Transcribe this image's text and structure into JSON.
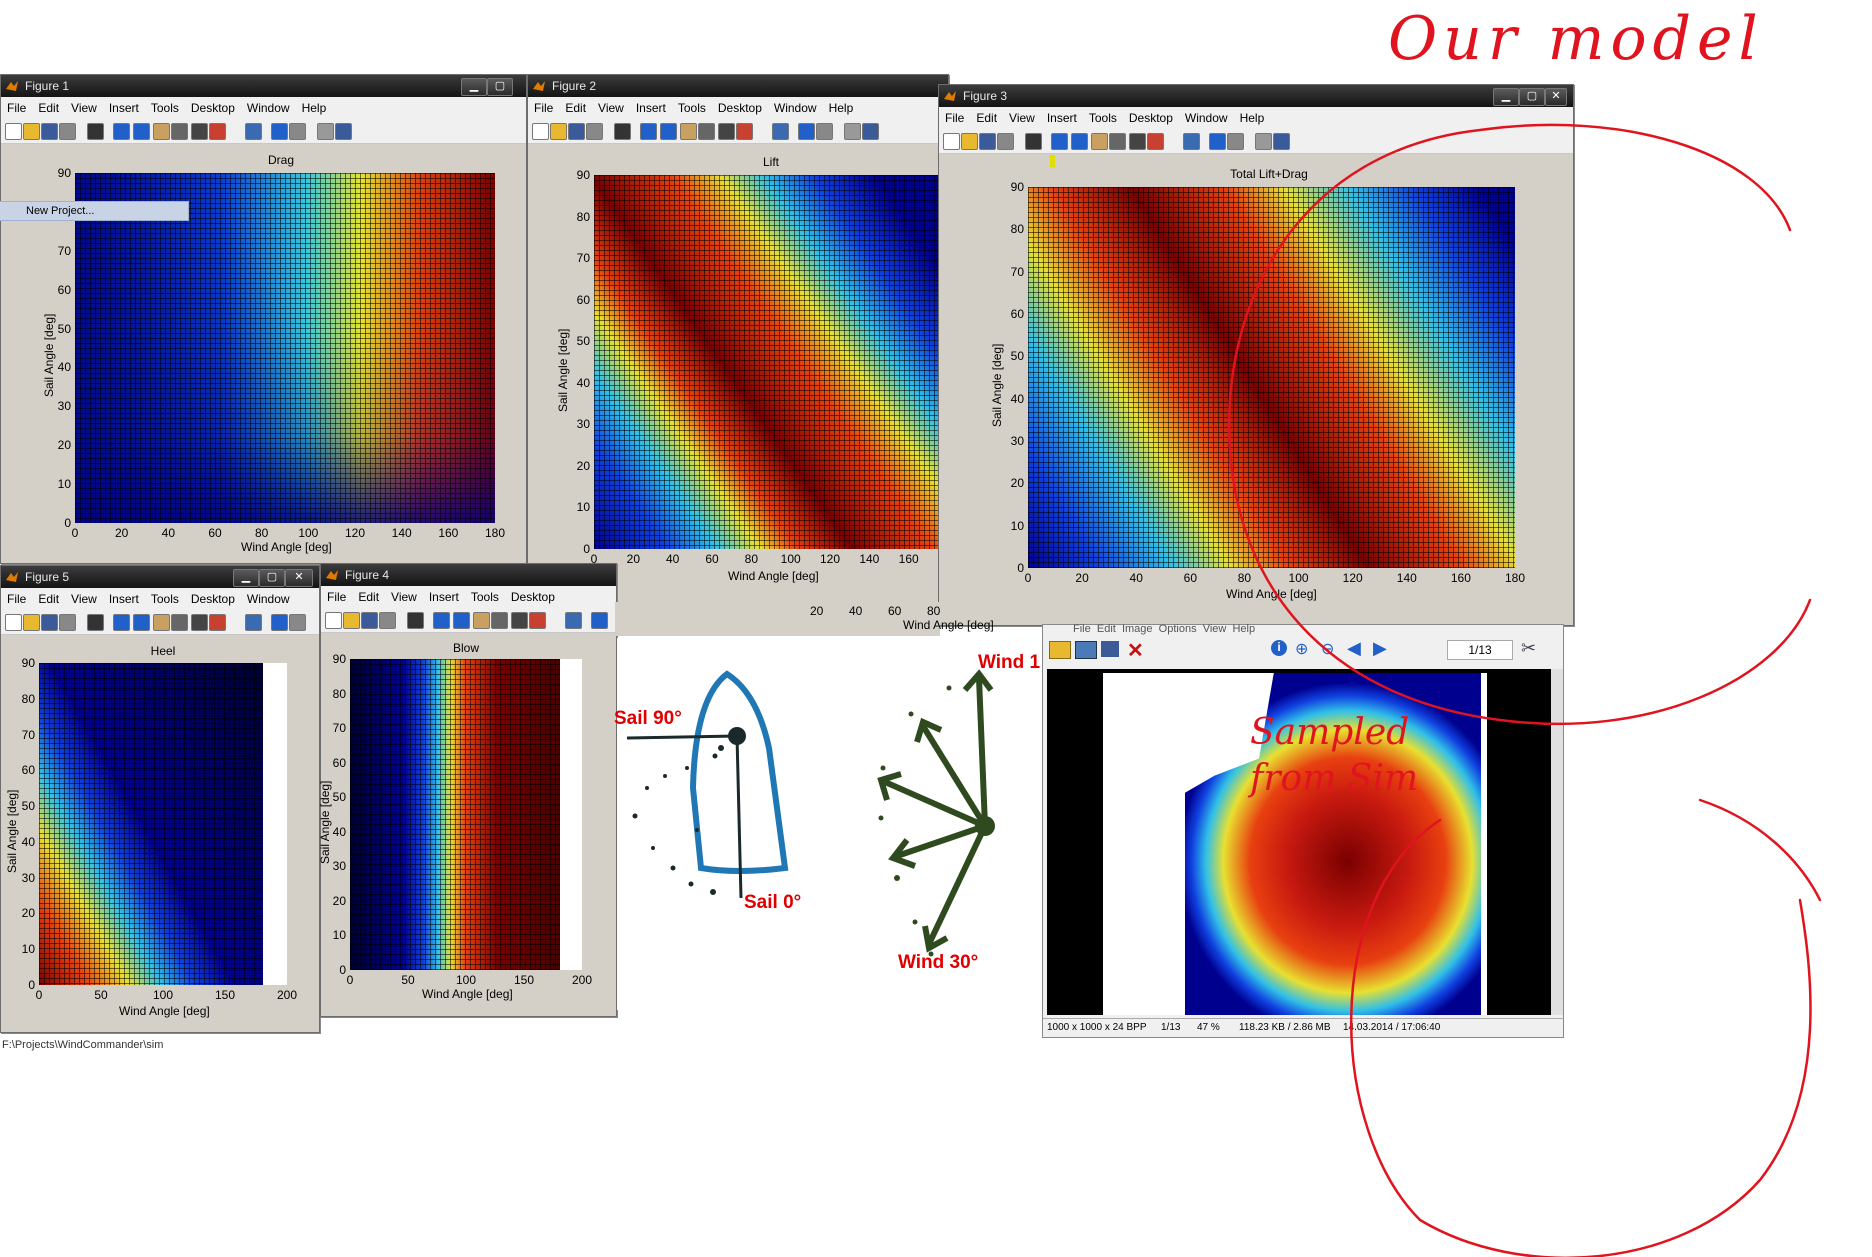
{
  "menu": [
    "File",
    "Edit",
    "View",
    "Insert",
    "Tools",
    "Desktop",
    "Window",
    "Help"
  ],
  "figures": {
    "fig1": {
      "title": "Figure 1",
      "plot_title": "Drag",
      "xlabel": "Wind Angle [deg]",
      "ylabel": "Sail Angle [deg]",
      "context_item": "New Project..."
    },
    "fig2": {
      "title": "Figure 2",
      "plot_title": "Lift",
      "xlabel": "Wind Angle [deg]",
      "ylabel": "Sail Angle [deg]"
    },
    "fig3": {
      "title": "Figure 3",
      "plot_title": "Total Lift+Drag",
      "xlabel": "Wind Angle [deg]",
      "ylabel": "Sail Angle [deg]"
    },
    "fig4": {
      "title": "Figure 4",
      "plot_title": "Blow",
      "xlabel": "Wind Angle [deg]",
      "ylabel": "Sail Angle [deg]",
      "behind_xlabel": "Wind Angle [deg]"
    },
    "fig5": {
      "title": "Figure 5",
      "plot_title": "Heel",
      "xlabel": "Wind Angle [deg]",
      "ylabel": "Sail Angle [deg]"
    }
  },
  "ticks": {
    "y90": [
      "0",
      "10",
      "20",
      "30",
      "40",
      "50",
      "60",
      "70",
      "80",
      "90"
    ],
    "x180": [
      "0",
      "20",
      "40",
      "60",
      "80",
      "100",
      "120",
      "140",
      "160",
      "180"
    ],
    "x160": [
      "0",
      "20",
      "40",
      "60",
      "80",
      "100",
      "120",
      "140",
      "160"
    ],
    "x200": [
      "0",
      "50",
      "100",
      "150",
      "200"
    ],
    "behind_x": [
      "20",
      "40",
      "60",
      "80"
    ]
  },
  "viewer": {
    "menu": [
      "File",
      "Edit",
      "Image",
      "Options",
      "View",
      "Help"
    ],
    "page": "1/13",
    "status": {
      "dims": "1000 x 1000 x 24 BPP",
      "index": "1/13",
      "zoom": "47 %",
      "size": "118.23 KB / 2.86 MB",
      "date": "14.03.2014 / 17:06:40"
    }
  },
  "diagram": {
    "sail90": "Sail 90°",
    "sail0": "Sail 0°",
    "wind1": "Wind 1",
    "wind30": "Wind 30°"
  },
  "statusbar_path": "F:\\Projects\\WindCommander\\sim",
  "handwriting": {
    "our_model": "Our model",
    "sampled_from_sim": "Sampled from Sim"
  },
  "colors": {
    "annotation": "#e0141e",
    "boat": "#1f77b4",
    "wind": "#2f4a1e",
    "label_red": "#e00000"
  }
}
